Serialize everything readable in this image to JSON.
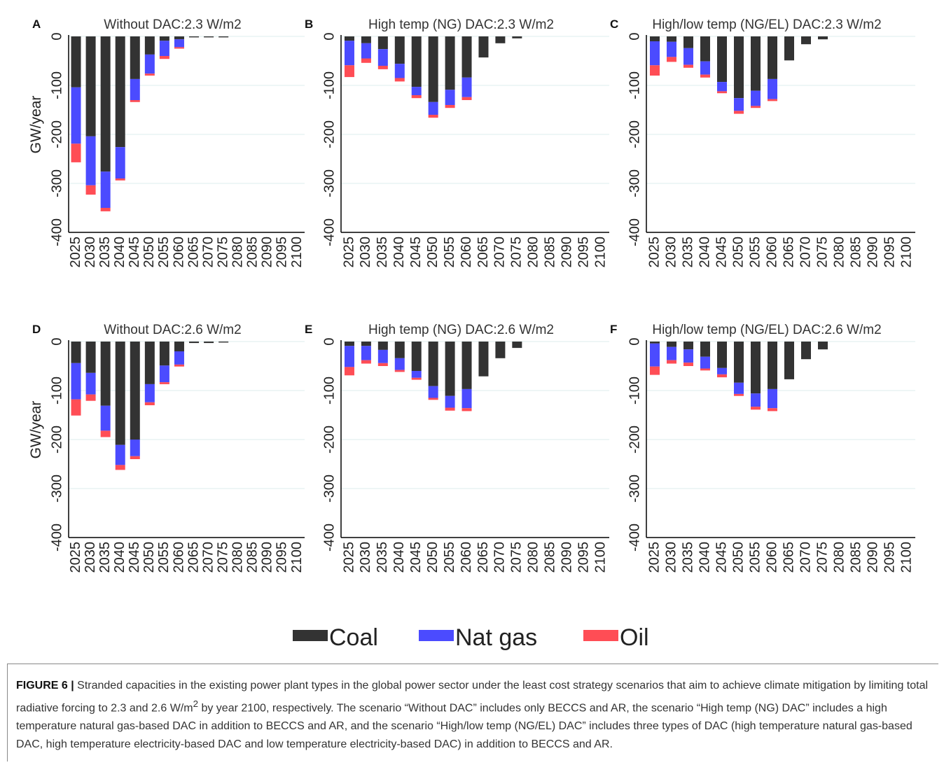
{
  "chart_data": [
    {
      "type": "bar",
      "stacked": true,
      "panel": "A",
      "title": "Without DAC:2.3 W/m2",
      "ylabel": "GW/year",
      "categories": [
        "2025",
        "2030",
        "2035",
        "2040",
        "2045",
        "2050",
        "2055",
        "2060",
        "2065",
        "2070",
        "2075",
        "2080",
        "2085",
        "2090",
        "2095",
        "2100"
      ],
      "series": [
        {
          "values": [
            -104,
            -204,
            -276,
            -226,
            -87,
            -37,
            -9,
            -6,
            -2,
            -2,
            -2,
            0,
            0,
            0,
            0,
            0
          ]
        },
        {
          "values": [
            -115,
            -100,
            -74,
            -64,
            -43,
            -39,
            -31,
            -16,
            0,
            0,
            0,
            0,
            0,
            0,
            0,
            0
          ]
        },
        {
          "values": [
            -38,
            -19,
            -7,
            -4,
            -4,
            -4,
            -6,
            -3,
            0,
            0,
            0,
            0,
            0,
            0,
            0,
            0
          ]
        }
      ],
      "ylim": [
        -400,
        0
      ],
      "yticks": [
        0,
        -100,
        -200,
        -300,
        -400
      ],
      "grid": true
    },
    {
      "type": "bar",
      "stacked": true,
      "panel": "B",
      "title": "High temp (NG) DAC:2.3 W/m2",
      "categories": [
        "2025",
        "2030",
        "2035",
        "2040",
        "2045",
        "2050",
        "2055",
        "2060",
        "2065",
        "2070",
        "2075",
        "2080",
        "2085",
        "2090",
        "2095",
        "2100"
      ],
      "series": [
        {
          "values": [
            -9,
            -14,
            -26,
            -56,
            -103,
            -134,
            -109,
            -84,
            -43,
            -14,
            -4,
            0,
            0,
            0,
            0,
            0
          ]
        },
        {
          "values": [
            -50,
            -31,
            -34,
            -29,
            -17,
            -26,
            -31,
            -40,
            0,
            0,
            0,
            0,
            0,
            0,
            0,
            0
          ]
        },
        {
          "values": [
            -24,
            -9,
            -7,
            -7,
            -6,
            -6,
            -6,
            -6,
            0,
            0,
            0,
            0,
            0,
            0,
            0,
            0
          ]
        }
      ],
      "ylim": [
        -400,
        0
      ],
      "yticks": [
        0,
        -100,
        -200,
        -300,
        -400
      ],
      "grid": true
    },
    {
      "type": "bar",
      "stacked": true,
      "panel": "C",
      "title": "High/low temp (NG/EL) DAC:2.3 W/m2",
      "categories": [
        "2025",
        "2030",
        "2035",
        "2040",
        "2045",
        "2050",
        "2055",
        "2060",
        "2065",
        "2070",
        "2075",
        "2080",
        "2085",
        "2090",
        "2095",
        "2100"
      ],
      "series": [
        {
          "values": [
            -10,
            -11,
            -24,
            -51,
            -93,
            -126,
            -111,
            -87,
            -49,
            -16,
            -6,
            0,
            0,
            0,
            0,
            0
          ]
        },
        {
          "values": [
            -49,
            -31,
            -34,
            -27,
            -19,
            -26,
            -31,
            -41,
            0,
            0,
            0,
            0,
            0,
            0,
            0,
            0
          ]
        },
        {
          "values": [
            -21,
            -10,
            -6,
            -6,
            -4,
            -6,
            -4,
            -4,
            0,
            0,
            0,
            0,
            0,
            0,
            0,
            0
          ]
        }
      ],
      "ylim": [
        -400,
        0
      ],
      "yticks": [
        0,
        -100,
        -200,
        -300,
        -400
      ],
      "grid": true
    },
    {
      "type": "bar",
      "stacked": true,
      "panel": "D",
      "title": "Without DAC:2.6 W/m2",
      "ylabel": "GW/year",
      "categories": [
        "2025",
        "2030",
        "2035",
        "2040",
        "2045",
        "2050",
        "2055",
        "2060",
        "2065",
        "2070",
        "2075",
        "2080",
        "2085",
        "2090",
        "2095",
        "2100"
      ],
      "series": [
        {
          "values": [
            -44,
            -64,
            -131,
            -211,
            -200,
            -87,
            -49,
            -20,
            -3,
            -3,
            -2,
            0,
            0,
            0,
            0,
            0
          ]
        },
        {
          "values": [
            -74,
            -44,
            -51,
            -41,
            -34,
            -37,
            -34,
            -27,
            0,
            0,
            0,
            0,
            0,
            0,
            0,
            0
          ]
        },
        {
          "values": [
            -33,
            -13,
            -13,
            -10,
            -6,
            -6,
            -4,
            -4,
            0,
            0,
            0,
            0,
            0,
            0,
            0,
            0
          ]
        }
      ],
      "ylim": [
        -400,
        0
      ],
      "yticks": [
        0,
        -100,
        -200,
        -300,
        -400
      ],
      "grid": true
    },
    {
      "type": "bar",
      "stacked": true,
      "panel": "E",
      "title": "High temp (NG) DAC:2.6 W/m2",
      "categories": [
        "2025",
        "2030",
        "2035",
        "2040",
        "2045",
        "2050",
        "2055",
        "2060",
        "2065",
        "2070",
        "2075",
        "2080",
        "2085",
        "2090",
        "2095",
        "2100"
      ],
      "series": [
        {
          "values": [
            -9,
            -9,
            -17,
            -34,
            -60,
            -91,
            -111,
            -97,
            -71,
            -34,
            -13,
            0,
            0,
            0,
            0,
            0
          ]
        },
        {
          "values": [
            -43,
            -29,
            -27,
            -24,
            -14,
            -24,
            -24,
            -39,
            0,
            0,
            0,
            0,
            0,
            0,
            0,
            0
          ]
        },
        {
          "values": [
            -17,
            -7,
            -6,
            -4,
            -4,
            -4,
            -6,
            -6,
            0,
            0,
            0,
            0,
            0,
            0,
            0,
            0
          ]
        }
      ],
      "ylim": [
        -400,
        0
      ],
      "yticks": [
        0,
        -100,
        -200,
        -300,
        -400
      ],
      "grid": true
    },
    {
      "type": "bar",
      "stacked": true,
      "panel": "F",
      "title": "High/low temp (NG/EL) DAC:2.6 W/m2",
      "categories": [
        "2025",
        "2030",
        "2035",
        "2040",
        "2045",
        "2050",
        "2055",
        "2060",
        "2065",
        "2070",
        "2075",
        "2080",
        "2085",
        "2090",
        "2095",
        "2100"
      ],
      "series": [
        {
          "values": [
            -4,
            -11,
            -16,
            -31,
            -54,
            -84,
            -106,
            -97,
            -77,
            -36,
            -16,
            0,
            0,
            0,
            0,
            0
          ]
        },
        {
          "values": [
            -47,
            -27,
            -27,
            -24,
            -13,
            -23,
            -27,
            -39,
            0,
            0,
            0,
            0,
            0,
            0,
            0,
            0
          ]
        },
        {
          "values": [
            -17,
            -7,
            -7,
            -4,
            -6,
            -4,
            -6,
            -6,
            0,
            0,
            0,
            0,
            0,
            0,
            0,
            0
          ]
        }
      ],
      "ylim": [
        -400,
        0
      ],
      "yticks": [
        0,
        -100,
        -200,
        -300,
        -400
      ],
      "grid": true
    }
  ],
  "legend": {
    "items": [
      {
        "name": "Coal",
        "color": "#333333"
      },
      {
        "name": "Nat gas",
        "color": "#4b4bff"
      },
      {
        "name": "Oil",
        "color": "#ff4d55"
      }
    ]
  },
  "caption": {
    "label": "FIGURE 6 |",
    "text_before": " Stranded capacities in the existing power plant types in the global power sector under the least cost strategy scenarios that aim to achieve climate mitigation by limiting total radiative forcing to 2.3 and 2.6 W/m",
    "superscript": "2",
    "text_after": " by year 2100, respectively. The scenario “Without DAC” includes only BECCS and AR, the scenario “High temp (NG) DAC” includes a high temperature natural gas-based DAC in addition to BECCS and AR, and the scenario “High/low temp (NG/EL) DAC” includes three types of DAC (high temperature natural gas-based DAC, high temperature electricity-based DAC and low temperature electricity-based DAC) in addition to BECCS and AR."
  }
}
